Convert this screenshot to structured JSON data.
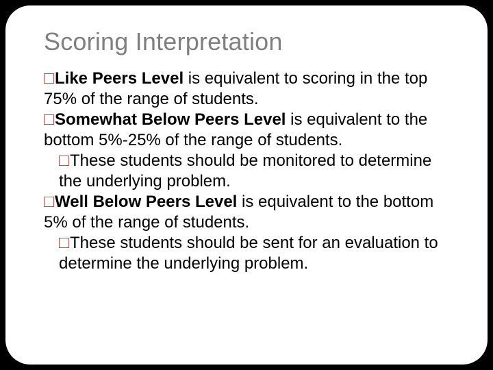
{
  "slide": {
    "title": "Scoring Interpretation",
    "bullets": [
      {
        "level": 1,
        "bold": "Like Peers Level",
        "text": " is equivalent to scoring in the top 75% of the range of students."
      },
      {
        "level": 1,
        "bold": "Somewhat Below Peers Level",
        "text": " is equivalent to the bottom 5%-25% of the range of students."
      },
      {
        "level": 2,
        "bold": "",
        "text": "These students should be monitored to determine the underlying problem."
      },
      {
        "level": 1,
        "bold": "Well Below Peers Level",
        "text": " is equivalent to the bottom 5% of the range of students."
      },
      {
        "level": 2,
        "bold": "",
        "text": "These students should be sent for an evaluation to determine the underlying problem."
      }
    ]
  },
  "style": {
    "background_color": "#000000",
    "slide_background": "#ffffff",
    "title_color": "#7f7f7f",
    "marker_border_color": "#b85450",
    "body_text_color": "#000000",
    "title_fontsize": 36,
    "body_fontsize": 24,
    "border_radius": 36
  }
}
